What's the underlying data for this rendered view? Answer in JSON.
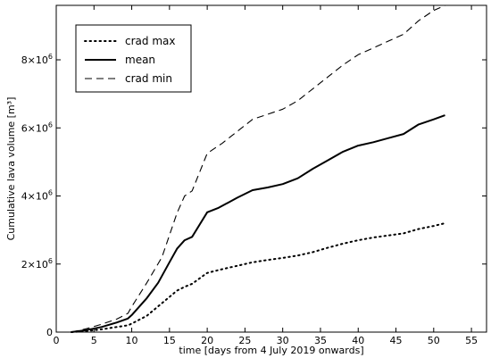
{
  "chart_data": {
    "type": "line",
    "xlabel": "time [days from 4 July 2019 onwards]",
    "ylabel": "Cumulative lava volume [m³]",
    "xlim": [
      0,
      57
    ],
    "ylim": [
      0,
      9600000
    ],
    "xticks": [
      0,
      5,
      10,
      15,
      20,
      25,
      30,
      35,
      40,
      45,
      50,
      55
    ],
    "yticks": [
      {
        "value": 0,
        "mantissa": "0",
        "exp": ""
      },
      {
        "value": 2000000,
        "mantissa": "2×10",
        "exp": "6"
      },
      {
        "value": 4000000,
        "mantissa": "4×10",
        "exp": "6"
      },
      {
        "value": 6000000,
        "mantissa": "6×10",
        "exp": "6"
      },
      {
        "value": 8000000,
        "mantissa": "8×10",
        "exp": "6"
      }
    ],
    "grid": false,
    "legend_position": "top-left",
    "series": [
      {
        "name": "crad max",
        "style": "dotted",
        "color": "#000000",
        "x": [
          2,
          4,
          6,
          8,
          9.5,
          10,
          12,
          14,
          16,
          17,
          18,
          20,
          22,
          24,
          26,
          28,
          30,
          32,
          34,
          36,
          38,
          40,
          42,
          44,
          46,
          48,
          50,
          51.5
        ],
        "y": [
          0,
          30000,
          80000,
          150000,
          200000,
          250000,
          480000,
          850000,
          1220000,
          1330000,
          1420000,
          1740000,
          1850000,
          1950000,
          2050000,
          2120000,
          2180000,
          2250000,
          2350000,
          2480000,
          2600000,
          2700000,
          2780000,
          2840000,
          2900000,
          3030000,
          3120000,
          3200000
        ]
      },
      {
        "name": "mean",
        "style": "solid",
        "color": "#000000",
        "x": [
          2,
          4,
          6,
          8,
          9.5,
          10,
          12,
          13.5,
          15,
          16,
          17,
          18,
          20,
          21.5,
          24,
          26,
          28,
          30,
          32,
          34,
          36,
          38,
          40,
          42,
          44,
          46,
          48,
          50,
          51.5
        ],
        "y": [
          0,
          60000,
          150000,
          280000,
          400000,
          500000,
          1000000,
          1450000,
          2050000,
          2450000,
          2700000,
          2800000,
          3520000,
          3650000,
          3950000,
          4170000,
          4250000,
          4350000,
          4520000,
          4800000,
          5050000,
          5300000,
          5480000,
          5580000,
          5700000,
          5820000,
          6100000,
          6250000,
          6370000
        ]
      },
      {
        "name": "crad min",
        "style": "dashed",
        "color": "#000000",
        "x": [
          2,
          4,
          6,
          8,
          9.5,
          10,
          12,
          14,
          16,
          17,
          18,
          20,
          22,
          24,
          26,
          28,
          30,
          32,
          34,
          36,
          38,
          40,
          42,
          44,
          46,
          48,
          50,
          51.5
        ],
        "y": [
          0,
          100000,
          230000,
          380000,
          550000,
          750000,
          1450000,
          2200000,
          3500000,
          4000000,
          4150000,
          5250000,
          5550000,
          5900000,
          6250000,
          6400000,
          6550000,
          6800000,
          7150000,
          7500000,
          7850000,
          8150000,
          8350000,
          8550000,
          8750000,
          9150000,
          9450000,
          9600000
        ]
      }
    ]
  }
}
